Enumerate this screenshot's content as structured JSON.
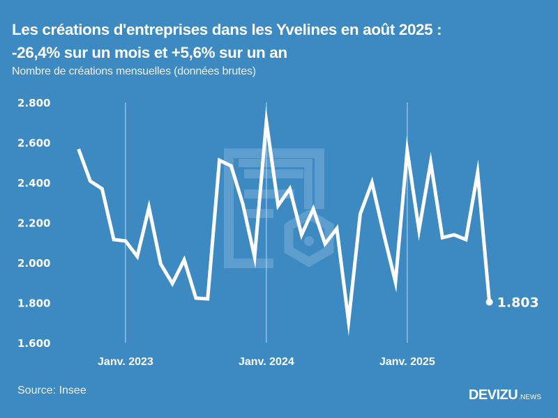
{
  "header": {
    "title_line1": "Les créations d'entreprises dans les Yvelines en août 2025 :",
    "title_line2": "-26,4% sur un mois et +5,6% sur un an",
    "subtitle": "Nombre de créations mensuelles (données brutes)"
  },
  "footer": {
    "source": "Source: Insee",
    "logo_main": "DEVIZU",
    "logo_sub": ".NEWS"
  },
  "colors": {
    "background": "#3d89c1",
    "line": "#ffffff",
    "gridline": "#a9cbe6",
    "watermark": "#5e9ecf"
  },
  "chart_data": {
    "type": "line",
    "title": "Les créations d'entreprises dans les Yvelines en août 2025 : -26,4% sur un mois et +5,6% sur un an",
    "subtitle": "Nombre de créations mensuelles (données brutes)",
    "xlabel": "",
    "ylabel": "",
    "ylim": [
      1600,
      2800
    ],
    "yticks": [
      1600,
      1800,
      2000,
      2200,
      2400,
      2600,
      2800
    ],
    "ytick_labels": [
      "1.600",
      "1.800",
      "2.000",
      "2.200",
      "2.400",
      "2.600",
      "2.800"
    ],
    "xtick_labels": [
      "Janv. 2023",
      "Janv. 2024",
      "Janv. 2025"
    ],
    "xtick_indices": [
      4,
      16,
      28
    ],
    "grid": "vertical at January ticks",
    "legend": "none",
    "x": [
      "2022-09",
      "2022-10",
      "2022-11",
      "2022-12",
      "2023-01",
      "2023-02",
      "2023-03",
      "2023-04",
      "2023-05",
      "2023-06",
      "2023-07",
      "2023-08",
      "2023-09",
      "2023-10",
      "2023-11",
      "2023-12",
      "2024-01",
      "2024-02",
      "2024-03",
      "2024-04",
      "2024-05",
      "2024-06",
      "2024-07",
      "2024-08",
      "2024-09",
      "2024-10",
      "2024-11",
      "2024-12",
      "2025-01",
      "2025-02",
      "2025-03",
      "2025-04",
      "2025-05",
      "2025-06",
      "2025-07",
      "2025-08"
    ],
    "series": [
      {
        "name": "Créations mensuelles",
        "values": [
          2567,
          2407,
          2369,
          2115,
          2108,
          2031,
          2275,
          1993,
          1896,
          2014,
          1823,
          1819,
          2511,
          2483,
          2292,
          2028,
          2705,
          2285,
          2369,
          2139,
          2268,
          2094,
          2170,
          1707,
          2243,
          2400,
          2143,
          1903,
          2560,
          2163,
          2501,
          2125,
          2139,
          2115,
          2450,
          1803
        ]
      }
    ],
    "annotations": [
      {
        "label": "1.803",
        "point": "2025-08"
      }
    ]
  }
}
